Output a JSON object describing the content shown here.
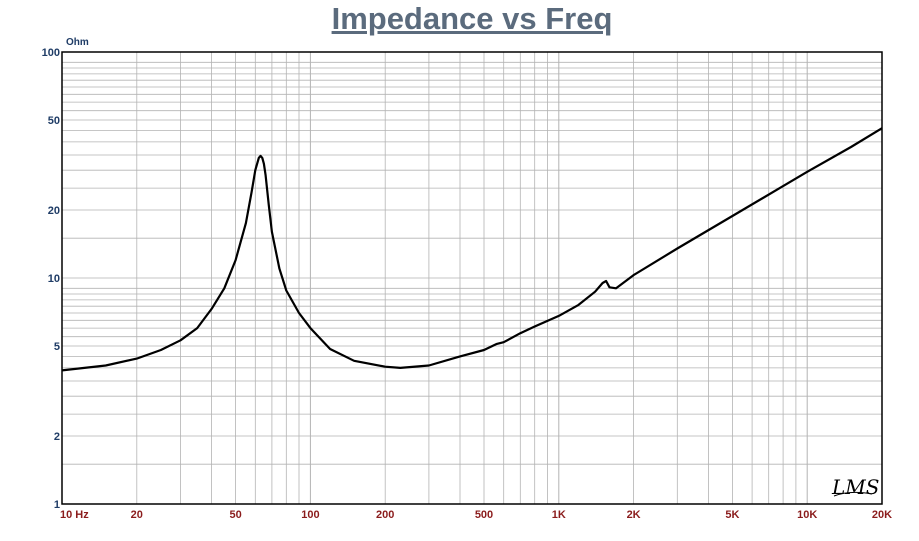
{
  "chart_data": {
    "type": "line",
    "title": "Impedance vs Freq",
    "ylabel": "Ohm",
    "xlabel": "",
    "xscale": "log",
    "yscale": "log",
    "xlim": [
      10,
      20000
    ],
    "ylim": [
      1,
      100
    ],
    "grid": true,
    "x_ticks": [
      {
        "value": 10,
        "label": "10  Hz"
      },
      {
        "value": 20,
        "label": "20"
      },
      {
        "value": 50,
        "label": "50"
      },
      {
        "value": 100,
        "label": "100"
      },
      {
        "value": 200,
        "label": "200"
      },
      {
        "value": 500,
        "label": "500"
      },
      {
        "value": 1000,
        "label": "1K"
      },
      {
        "value": 2000,
        "label": "2K"
      },
      {
        "value": 5000,
        "label": "5K"
      },
      {
        "value": 10000,
        "label": "10K"
      },
      {
        "value": 20000,
        "label": "20K"
      }
    ],
    "y_ticks": [
      {
        "value": 1,
        "label": "1"
      },
      {
        "value": 2,
        "label": "2"
      },
      {
        "value": 5,
        "label": "5"
      },
      {
        "value": 10,
        "label": "10"
      },
      {
        "value": 20,
        "label": "20"
      },
      {
        "value": 50,
        "label": "50"
      },
      {
        "value": 100,
        "label": "100"
      }
    ],
    "series": [
      {
        "color": "#000000",
        "x": [
          10,
          15,
          20,
          25,
          30,
          35,
          40,
          45,
          50,
          55,
          58,
          60,
          62,
          63,
          64,
          65,
          66,
          68,
          70,
          75,
          80,
          90,
          100,
          120,
          150,
          200,
          230,
          300,
          400,
          500,
          560,
          600,
          700,
          800,
          1000,
          1200,
          1400,
          1500,
          1550,
          1600,
          1700,
          2000,
          3000,
          5000,
          8000,
          10000,
          15000,
          20000
        ],
        "y": [
          3.9,
          4.1,
          4.4,
          4.8,
          5.3,
          6.0,
          7.3,
          9.0,
          12.0,
          17.5,
          24.0,
          30.0,
          34.0,
          34.7,
          34.0,
          32.0,
          28.5,
          21.0,
          16.0,
          11.0,
          8.8,
          7.0,
          6.0,
          4.85,
          4.3,
          4.05,
          4.0,
          4.1,
          4.5,
          4.8,
          5.1,
          5.2,
          5.7,
          6.1,
          6.8,
          7.6,
          8.7,
          9.5,
          9.7,
          9.1,
          9.0,
          10.3,
          13.5,
          18.8,
          25.5,
          29.5,
          38.0,
          46.0
        ]
      }
    ]
  },
  "logo_text": "LMS",
  "colors": {
    "title": "#5b6b7d",
    "y_tick_labels": "#1f3c66",
    "x_tick_labels": "#8b1c1c",
    "grid": "#b3b3b3",
    "frame": "#000000",
    "curve": "#000000"
  }
}
